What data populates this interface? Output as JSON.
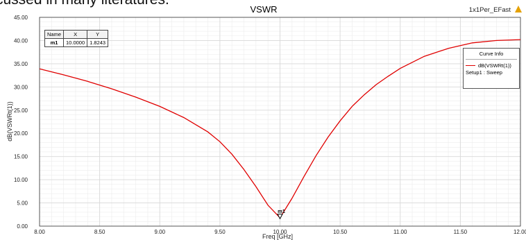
{
  "page": {
    "top_text": "cussed in many literatures.",
    "project_label": "1x1Per_EFast",
    "warning_icon": "warning-triangle-icon"
  },
  "colors": {
    "curve": "#e00000",
    "grid": "#d9d9d9",
    "axis": "#333333"
  },
  "marker_table": {
    "headers": [
      "Name",
      "X",
      "Y"
    ],
    "rows": [
      {
        "name": "m1",
        "x": "10.0000",
        "y": "1.8243"
      }
    ]
  },
  "curve_info": {
    "title": "Curve Info",
    "trace_name": "dB(VSWRt(1))",
    "setup": "Setup1 : Sweep"
  },
  "chart_data": {
    "type": "line",
    "title": "VSWR",
    "xlabel": "Freq [GHz]",
    "ylabel": "dB(VSWRt(1))",
    "xlim": [
      8.0,
      12.0
    ],
    "ylim": [
      0.0,
      45.0
    ],
    "x_ticks": [
      "8.00",
      "8.50",
      "9.00",
      "9.50",
      "10.00",
      "10.50",
      "11.00",
      "11.50",
      "12.00"
    ],
    "y_ticks": [
      "0.00",
      "5.00",
      "10.00",
      "15.00",
      "20.00",
      "25.00",
      "30.00",
      "35.00",
      "40.00",
      "45.00"
    ],
    "grid": true,
    "legend": "right",
    "series": [
      {
        "name": "dB(VSWRt(1))",
        "x": [
          8.0,
          8.2,
          8.4,
          8.6,
          8.8,
          9.0,
          9.2,
          9.4,
          9.5,
          9.6,
          9.7,
          9.8,
          9.9,
          10.0,
          10.1,
          10.2,
          10.3,
          10.4,
          10.5,
          10.6,
          10.7,
          10.8,
          10.9,
          11.0,
          11.2,
          11.4,
          11.6,
          11.8,
          12.0
        ],
        "y": [
          33.9,
          32.6,
          31.2,
          29.6,
          27.8,
          25.8,
          23.4,
          20.3,
          18.2,
          15.5,
          12.2,
          8.5,
          4.5,
          1.8,
          6.0,
          10.7,
          15.2,
          19.2,
          22.7,
          25.8,
          28.3,
          30.5,
          32.3,
          34.0,
          36.6,
          38.3,
          39.5,
          40.0,
          40.2
        ]
      }
    ],
    "markers": [
      {
        "name": "m1",
        "x": 10.0,
        "y": 1.8243
      }
    ]
  }
}
